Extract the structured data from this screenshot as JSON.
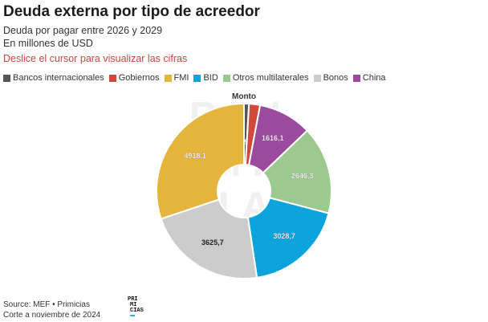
{
  "header": {
    "title": "Deuda externa por tipo de acreedor",
    "subtitle_line1": "Deuda por pagar entre 2026 y 2029",
    "subtitle_line2": "En millones de USD",
    "hint": "Deslice el cursor para visualizar las cifras"
  },
  "legend": [
    {
      "label": "Bancos internacionales",
      "color": "#555555"
    },
    {
      "label": "Gobiernos",
      "color": "#d04a3c"
    },
    {
      "label": "FMI",
      "color": "#e5b43c"
    },
    {
      "label": "BID",
      "color": "#0aa3dc"
    },
    {
      "label": "Otros multilaterales",
      "color": "#9cc98f"
    },
    {
      "label": "Bonos",
      "color": "#cccccc"
    },
    {
      "label": "China",
      "color": "#9b4a9e"
    }
  ],
  "chart_data": {
    "type": "pie",
    "variant": "donut",
    "title": "Deuda externa por tipo de acreedor",
    "series_label": "Monto",
    "unit": "millones de USD",
    "slices": [
      {
        "name": "Bancos internacionales",
        "value": 149.1,
        "label": "149,1",
        "color": "#555555"
      },
      {
        "name": "Gobiernos",
        "value": 333.0,
        "label": "",
        "color": "#d04a3c"
      },
      {
        "name": "China",
        "value": 1616.1,
        "label": "1616,1",
        "color": "#9b4a9e"
      },
      {
        "name": "Otros multilaterales",
        "value": 2646.3,
        "label": "2646,3",
        "color": "#9cc98f"
      },
      {
        "name": "BID",
        "value": 3028.7,
        "label": "3028,7",
        "color": "#0aa3dc"
      },
      {
        "name": "Bonos",
        "value": 3625.7,
        "label": "3625,7",
        "color": "#cccccc"
      },
      {
        "name": "FMI",
        "value": 4918.1,
        "label": "4918,1",
        "color": "#e5b43c"
      }
    ]
  },
  "watermark": "PRI MI CIAS",
  "footer": {
    "source": "Source: MEF • Primicias",
    "date": "Corte a noviembre de 2024",
    "logo_line1": "PRI",
    "logo_line2": "MI",
    "logo_line3": "CIAS"
  }
}
